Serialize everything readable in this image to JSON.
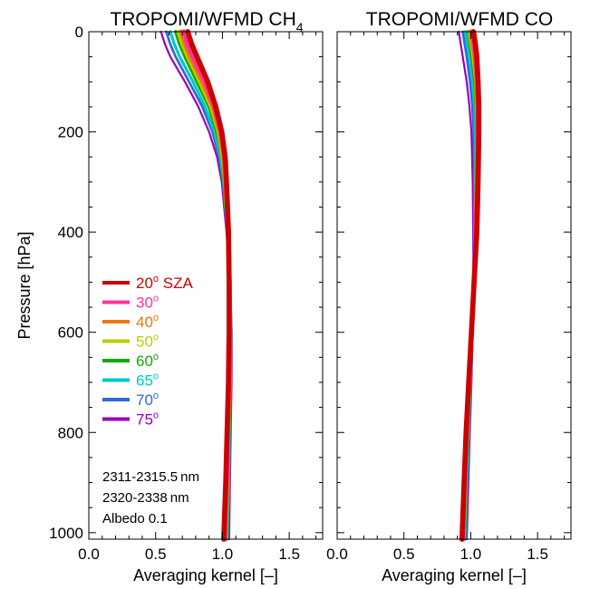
{
  "chart_data": [
    {
      "type": "line",
      "title": "TROPOMI/WFMD CH",
      "title_subscript": "4",
      "xlabel": "Averaging kernel [–]",
      "ylabel": "Pressure [hPa]",
      "xlim": [
        0.0,
        1.75
      ],
      "ylim": [
        1013,
        0
      ],
      "xticks": [
        "0.0",
        "0.5",
        "1.0",
        "1.5"
      ],
      "yticks": [
        "0",
        "200",
        "400",
        "600",
        "800",
        "1000"
      ],
      "legend": {
        "placement": "center-left",
        "entries": [
          {
            "angle": "20",
            "suffix": " SZA",
            "color": "#cc0000"
          },
          {
            "angle": "30",
            "suffix": "",
            "color": "#ff3399"
          },
          {
            "angle": "40",
            "suffix": "",
            "color": "#ee7700"
          },
          {
            "angle": "50",
            "suffix": "",
            "color": "#bbcc00"
          },
          {
            "angle": "60",
            "suffix": "",
            "color": "#11aa00"
          },
          {
            "angle": "65",
            "suffix": "",
            "color": "#00c8c8"
          },
          {
            "angle": "70",
            "suffix": "",
            "color": "#3366dd"
          },
          {
            "angle": "75",
            "suffix": "",
            "color": "#9900bb"
          }
        ]
      },
      "annotations": [
        "2311-2315.5 nm",
        "2320-2338 nm",
        "Albedo 0.1"
      ],
      "pressure": [
        0,
        25,
        50,
        100,
        150,
        200,
        250,
        300,
        400,
        500,
        600,
        700,
        800,
        900,
        1013
      ],
      "series": [
        {
          "values": [
            0.74,
            0.77,
            0.81,
            0.89,
            0.95,
            0.995,
            1.02,
            1.03,
            1.045,
            1.05,
            1.05,
            1.045,
            1.035,
            1.025,
            1.01
          ],
          "color": "#cc0000"
        },
        {
          "values": [
            0.71,
            0.74,
            0.78,
            0.87,
            0.94,
            0.99,
            1.015,
            1.03,
            1.045,
            1.052,
            1.052,
            1.048,
            1.038,
            1.03,
            1.015
          ],
          "color": "#ff3399"
        },
        {
          "values": [
            0.69,
            0.72,
            0.76,
            0.85,
            0.93,
            0.98,
            1.01,
            1.025,
            1.043,
            1.053,
            1.055,
            1.05,
            1.042,
            1.033,
            1.02
          ],
          "color": "#ee7700"
        },
        {
          "values": [
            0.67,
            0.7,
            0.74,
            0.83,
            0.915,
            0.97,
            1.0,
            1.02,
            1.042,
            1.055,
            1.057,
            1.053,
            1.045,
            1.037,
            1.025
          ],
          "color": "#bbcc00"
        },
        {
          "values": [
            0.65,
            0.68,
            0.72,
            0.81,
            0.9,
            0.96,
            0.995,
            1.015,
            1.04,
            1.056,
            1.06,
            1.056,
            1.048,
            1.04,
            1.03
          ],
          "color": "#11aa00"
        },
        {
          "values": [
            0.61,
            0.64,
            0.68,
            0.78,
            0.87,
            0.94,
            0.985,
            1.01,
            1.038,
            1.057,
            1.063,
            1.06,
            1.052,
            1.045,
            1.035
          ],
          "color": "#00c8c8"
        },
        {
          "values": [
            0.58,
            0.61,
            0.65,
            0.75,
            0.85,
            0.925,
            0.975,
            1.005,
            1.036,
            1.058,
            1.066,
            1.063,
            1.056,
            1.05,
            1.04
          ],
          "color": "#3366dd"
        },
        {
          "values": [
            0.54,
            0.57,
            0.61,
            0.72,
            0.82,
            0.9,
            0.96,
            0.995,
            1.03,
            1.058,
            1.07,
            1.068,
            1.062,
            1.056,
            1.05
          ],
          "color": "#9900bb"
        }
      ]
    },
    {
      "type": "line",
      "title": "TROPOMI/WFMD CO",
      "xlabel": "Averaging kernel [–]",
      "xlim": [
        0.0,
        1.75
      ],
      "ylim": [
        1013,
        0
      ],
      "xticks": [
        "0.0",
        "0.5",
        "1.0",
        "1.5"
      ],
      "pressure": [
        0,
        25,
        50,
        100,
        150,
        200,
        300,
        400,
        500,
        600,
        700,
        800,
        900,
        1013
      ],
      "series": [
        {
          "values": [
            1.02,
            1.035,
            1.045,
            1.055,
            1.06,
            1.06,
            1.055,
            1.045,
            1.025,
            1.005,
            0.985,
            0.965,
            0.95,
            0.935
          ],
          "color": "#cc0000"
        },
        {
          "values": [
            1.01,
            1.025,
            1.035,
            1.05,
            1.055,
            1.055,
            1.05,
            1.04,
            1.025,
            1.005,
            0.985,
            0.967,
            0.952,
            0.938
          ],
          "color": "#ff3399"
        },
        {
          "values": [
            1.0,
            1.015,
            1.03,
            1.045,
            1.05,
            1.05,
            1.045,
            1.038,
            1.025,
            1.007,
            0.988,
            0.97,
            0.955,
            0.942
          ],
          "color": "#ee7700"
        },
        {
          "values": [
            0.99,
            1.005,
            1.02,
            1.04,
            1.045,
            1.047,
            1.043,
            1.036,
            1.025,
            1.008,
            0.99,
            0.973,
            0.958,
            0.946
          ],
          "color": "#bbcc00"
        },
        {
          "values": [
            0.98,
            0.995,
            1.01,
            1.03,
            1.04,
            1.043,
            1.04,
            1.034,
            1.025,
            1.01,
            0.993,
            0.976,
            0.962,
            0.95
          ],
          "color": "#11aa00"
        },
        {
          "values": [
            0.96,
            0.975,
            0.99,
            1.015,
            1.028,
            1.034,
            1.034,
            1.03,
            1.024,
            1.012,
            0.997,
            0.982,
            0.968,
            0.956
          ],
          "color": "#00c8c8"
        },
        {
          "values": [
            0.94,
            0.955,
            0.97,
            0.995,
            1.012,
            1.022,
            1.026,
            1.025,
            1.022,
            1.013,
            1.0,
            0.987,
            0.974,
            0.962
          ],
          "color": "#3366dd"
        },
        {
          "values": [
            0.91,
            0.925,
            0.94,
            0.97,
            0.99,
            1.005,
            1.015,
            1.018,
            1.02,
            1.015,
            1.005,
            0.993,
            0.982,
            0.97
          ],
          "color": "#9900bb"
        }
      ]
    }
  ]
}
